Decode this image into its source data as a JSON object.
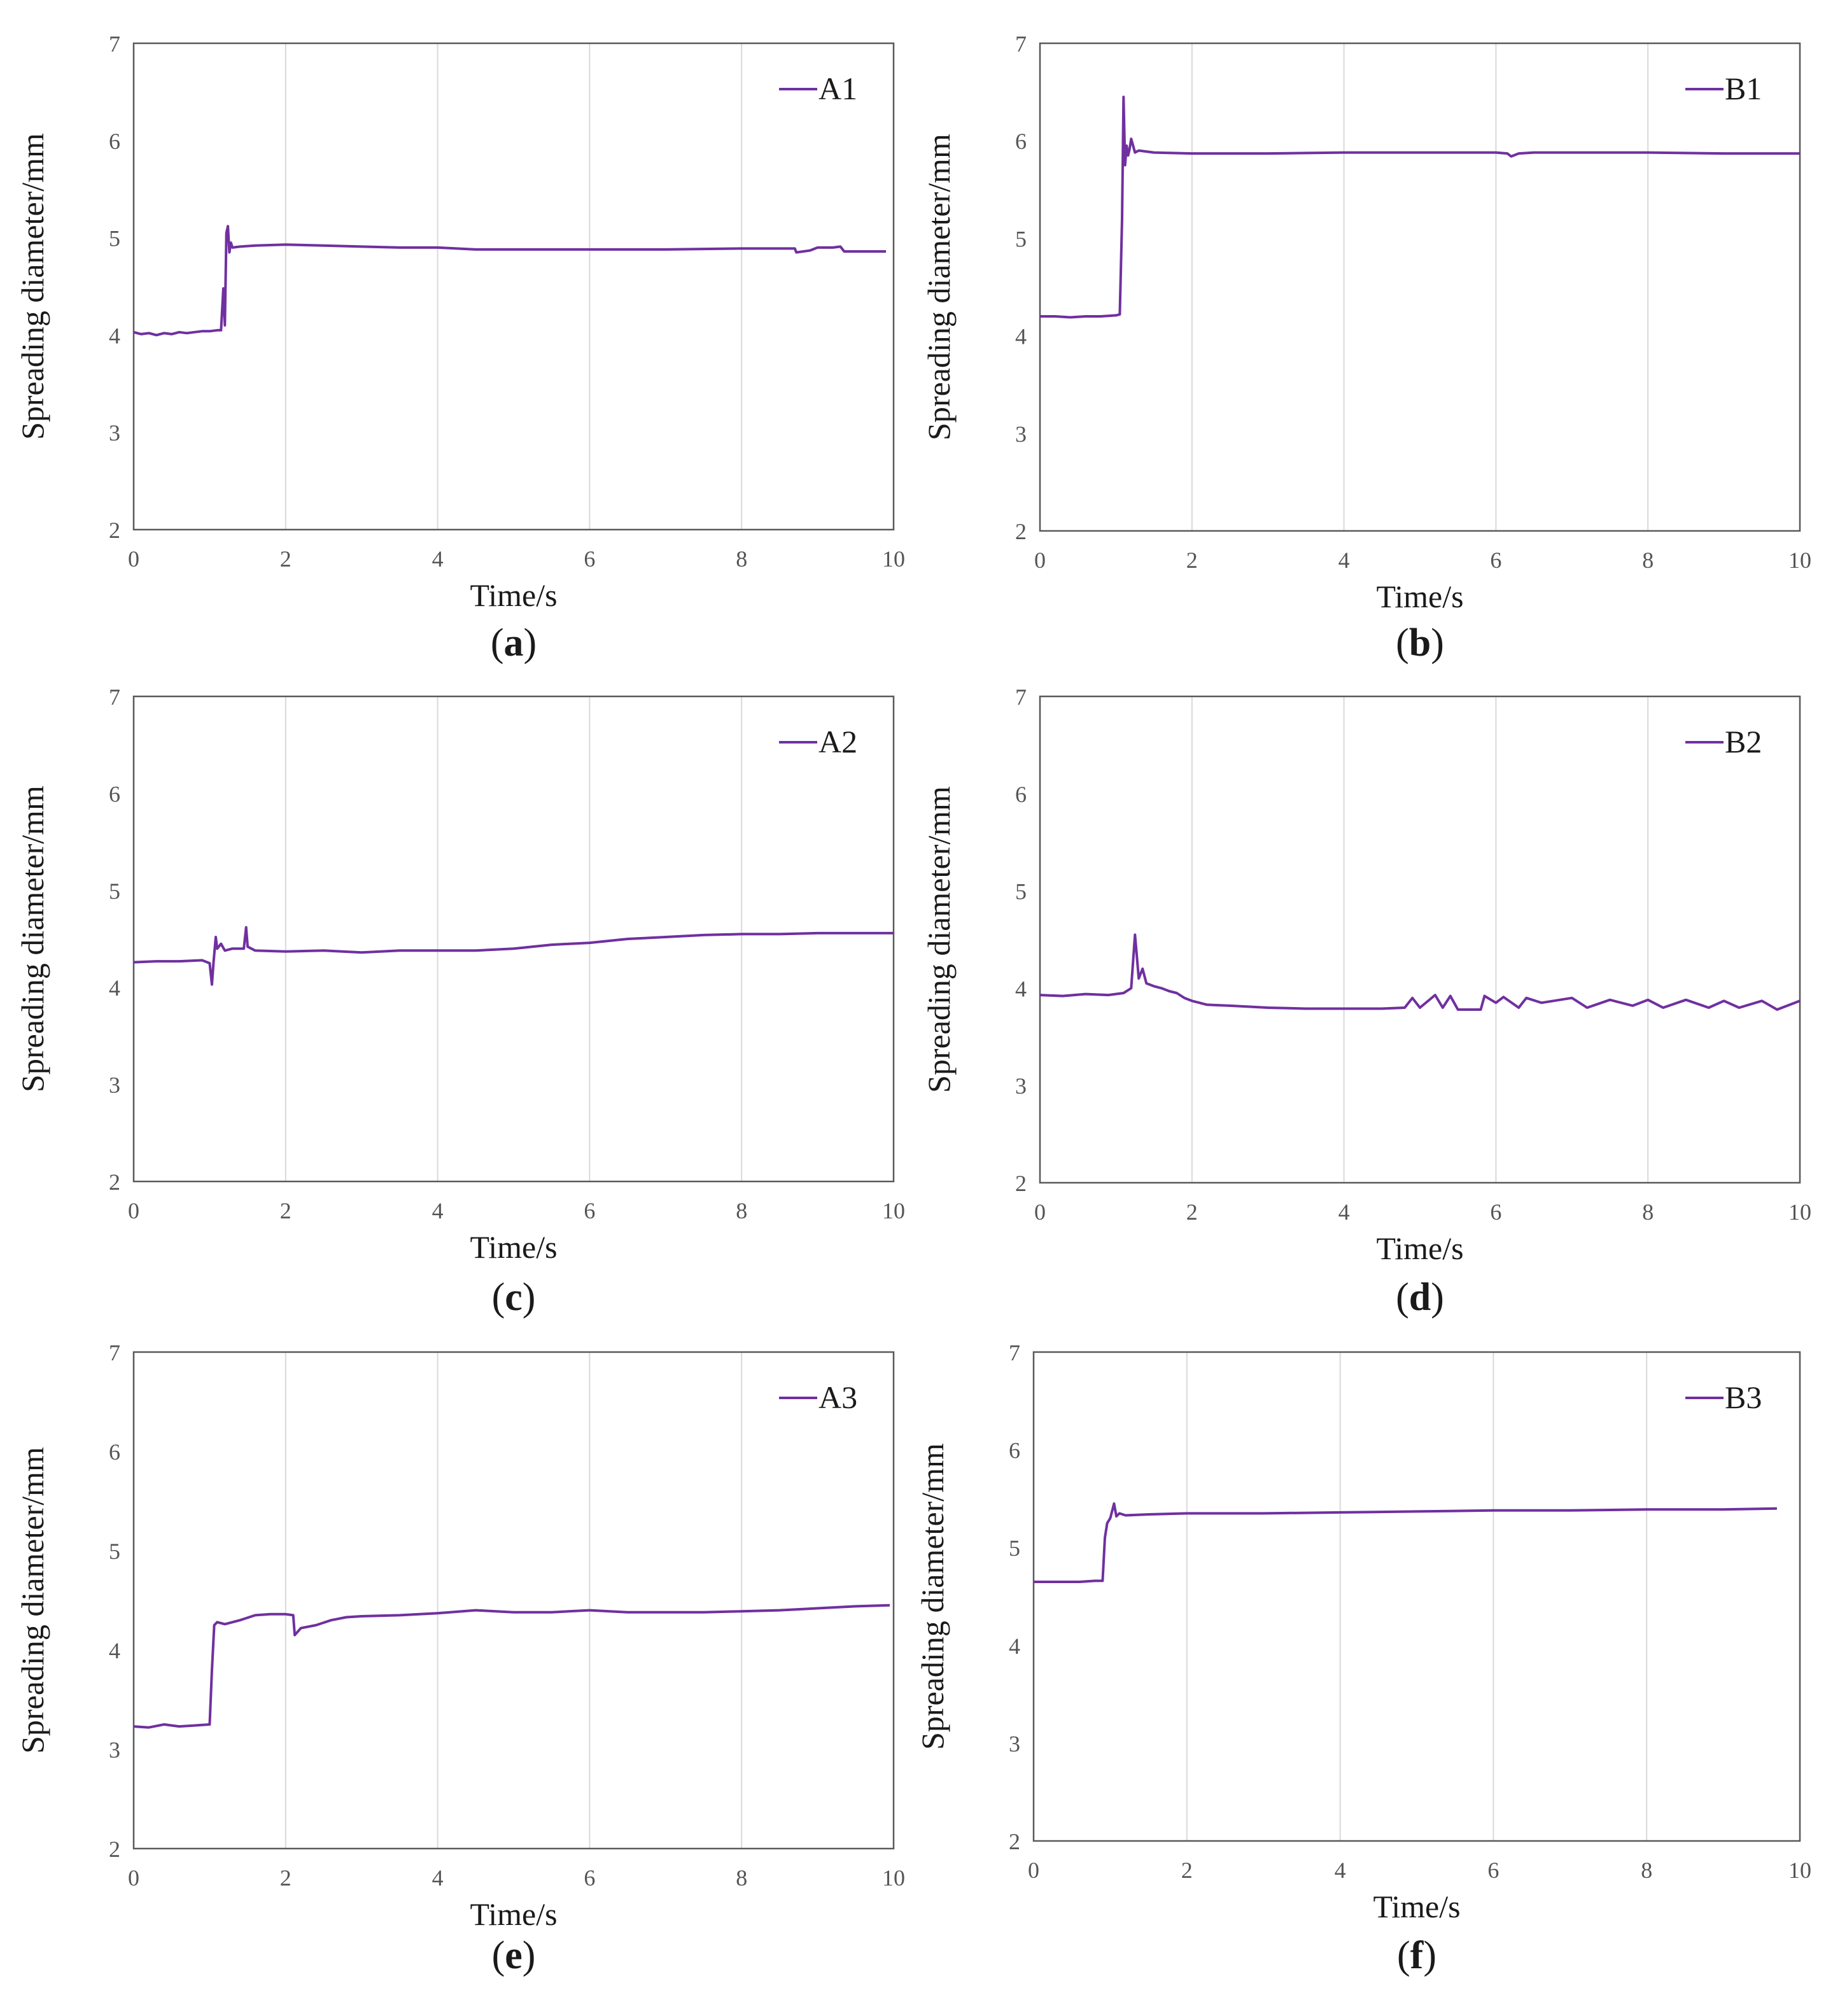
{
  "figure": {
    "line_color": "#7030A0",
    "grid_color": "#d9d9d9",
    "axis_color": "#595959"
  },
  "chart_data": [
    {
      "type": "line",
      "id": "a",
      "caption": "a",
      "legend_position": "top-right",
      "xlabel": "Time/s",
      "ylabel": "Spreading diameter/mm",
      "xlim": [
        0,
        10
      ],
      "ylim": [
        2,
        7
      ],
      "xticks": [
        "0",
        "2",
        "4",
        "6",
        "8",
        "10"
      ],
      "yticks": [
        "2",
        "3",
        "4",
        "5",
        "6",
        "7"
      ],
      "series": [
        {
          "name": "A1",
          "x": [
            0,
            0.1,
            0.2,
            0.3,
            0.4,
            0.5,
            0.6,
            0.7,
            0.8,
            0.9,
            1.0,
            1.1,
            1.15,
            1.18,
            1.2,
            1.22,
            1.24,
            1.26,
            1.28,
            1.3,
            1.4,
            1.6,
            2.0,
            2.5,
            3.0,
            3.5,
            4.0,
            4.5,
            5.0,
            6.0,
            7.0,
            8.0,
            8.5,
            8.7,
            8.72,
            8.9,
            9.0,
            9.2,
            9.3,
            9.35,
            9.5,
            9.9
          ],
          "y": [
            4.03,
            4.01,
            4.02,
            4.0,
            4.02,
            4.01,
            4.03,
            4.02,
            4.03,
            4.04,
            4.04,
            4.05,
            4.05,
            4.48,
            4.1,
            5.05,
            5.12,
            4.85,
            4.95,
            4.9,
            4.91,
            4.92,
            4.93,
            4.92,
            4.91,
            4.9,
            4.9,
            4.88,
            4.88,
            4.88,
            4.88,
            4.89,
            4.89,
            4.89,
            4.85,
            4.87,
            4.9,
            4.9,
            4.91,
            4.86,
            4.86,
            4.86
          ]
        }
      ]
    },
    {
      "type": "line",
      "id": "b",
      "caption": "b",
      "legend_position": "top-right",
      "xlabel": "Time/s",
      "ylabel": "Spreading diameter/mm",
      "xlim": [
        0,
        10
      ],
      "ylim": [
        2,
        7
      ],
      "xticks": [
        "0",
        "2",
        "4",
        "6",
        "8",
        "10"
      ],
      "yticks": [
        "2",
        "3",
        "4",
        "5",
        "6",
        "7"
      ],
      "series": [
        {
          "name": "B1",
          "x": [
            0,
            0.2,
            0.4,
            0.6,
            0.8,
            1.0,
            1.05,
            1.08,
            1.1,
            1.12,
            1.14,
            1.16,
            1.18,
            1.2,
            1.25,
            1.3,
            1.5,
            2.0,
            3.0,
            4.0,
            5.0,
            6.0,
            6.15,
            6.2,
            6.3,
            6.5,
            7.0,
            8.0,
            9.0,
            10.0
          ],
          "y": [
            4.2,
            4.2,
            4.19,
            4.2,
            4.2,
            4.21,
            4.22,
            5.2,
            6.45,
            5.75,
            5.95,
            5.85,
            5.92,
            6.02,
            5.88,
            5.9,
            5.88,
            5.87,
            5.87,
            5.88,
            5.88,
            5.88,
            5.87,
            5.84,
            5.87,
            5.88,
            5.88,
            5.88,
            5.87,
            5.87
          ]
        }
      ]
    },
    {
      "type": "line",
      "id": "c",
      "caption": "c",
      "legend_position": "top-right",
      "xlabel": "Time/s",
      "ylabel": "Spreading diameter/mm",
      "xlim": [
        0,
        10
      ],
      "ylim": [
        2,
        7
      ],
      "xticks": [
        "0",
        "2",
        "4",
        "6",
        "8",
        "10"
      ],
      "yticks": [
        "2",
        "3",
        "4",
        "5",
        "6",
        "7"
      ],
      "series": [
        {
          "name": "A2",
          "x": [
            0,
            0.3,
            0.6,
            0.9,
            1.0,
            1.03,
            1.05,
            1.08,
            1.1,
            1.15,
            1.2,
            1.3,
            1.45,
            1.48,
            1.5,
            1.6,
            2.0,
            2.5,
            3.0,
            3.5,
            4.0,
            4.5,
            5.0,
            5.5,
            6.0,
            6.5,
            7.0,
            7.5,
            8.0,
            8.5,
            9.0,
            9.5,
            10.0
          ],
          "y": [
            4.26,
            4.27,
            4.27,
            4.28,
            4.25,
            4.03,
            4.25,
            4.52,
            4.4,
            4.45,
            4.38,
            4.4,
            4.4,
            4.62,
            4.42,
            4.38,
            4.37,
            4.38,
            4.36,
            4.38,
            4.38,
            4.38,
            4.4,
            4.44,
            4.46,
            4.5,
            4.52,
            4.54,
            4.55,
            4.55,
            4.56,
            4.56,
            4.56
          ]
        }
      ]
    },
    {
      "type": "line",
      "id": "d",
      "caption": "d",
      "legend_position": "top-right",
      "xlabel": "Time/s",
      "ylabel": "Spreading diameter/mm",
      "xlim": [
        0,
        10
      ],
      "ylim": [
        2,
        7
      ],
      "xticks": [
        "0",
        "2",
        "4",
        "6",
        "8",
        "10"
      ],
      "yticks": [
        "2",
        "3",
        "4",
        "5",
        "6",
        "7"
      ],
      "series": [
        {
          "name": "B2",
          "x": [
            0,
            0.3,
            0.6,
            0.9,
            1.1,
            1.2,
            1.25,
            1.3,
            1.35,
            1.4,
            1.5,
            1.6,
            1.7,
            1.8,
            1.9,
            2.0,
            2.2,
            2.5,
            3.0,
            3.5,
            4.0,
            4.5,
            4.8,
            4.9,
            5.0,
            5.2,
            5.3,
            5.4,
            5.5,
            5.8,
            5.85,
            6.0,
            6.1,
            6.3,
            6.4,
            6.6,
            7.0,
            7.2,
            7.5,
            7.8,
            8.0,
            8.2,
            8.5,
            8.8,
            9.0,
            9.2,
            9.5,
            9.7,
            10.0
          ],
          "y": [
            3.93,
            3.92,
            3.94,
            3.93,
            3.95,
            4.0,
            4.55,
            4.1,
            4.2,
            4.05,
            4.02,
            4.0,
            3.97,
            3.95,
            3.9,
            3.87,
            3.83,
            3.82,
            3.8,
            3.79,
            3.79,
            3.79,
            3.8,
            3.9,
            3.8,
            3.93,
            3.8,
            3.92,
            3.78,
            3.78,
            3.92,
            3.85,
            3.91,
            3.8,
            3.9,
            3.85,
            3.9,
            3.8,
            3.88,
            3.82,
            3.88,
            3.8,
            3.88,
            3.8,
            3.87,
            3.8,
            3.87,
            3.78,
            3.87
          ]
        }
      ]
    },
    {
      "type": "line",
      "id": "e",
      "caption": "e",
      "legend_position": "top-right",
      "xlabel": "Time/s",
      "ylabel": "Spreading diameter/mm",
      "xlim": [
        0,
        10
      ],
      "ylim": [
        2,
        7
      ],
      "xticks": [
        "0",
        "2",
        "4",
        "6",
        "8",
        "10"
      ],
      "yticks": [
        "2",
        "3",
        "4",
        "5",
        "6",
        "7"
      ],
      "series": [
        {
          "name": "A3",
          "x": [
            0,
            0.2,
            0.4,
            0.6,
            0.8,
            1.0,
            1.03,
            1.06,
            1.1,
            1.2,
            1.4,
            1.6,
            1.8,
            2.0,
            2.1,
            2.12,
            2.2,
            2.4,
            2.6,
            2.8,
            3.0,
            3.5,
            4.0,
            4.5,
            5.0,
            5.5,
            6.0,
            6.5,
            7.0,
            7.5,
            8.0,
            8.5,
            9.0,
            9.5,
            9.95
          ],
          "y": [
            3.23,
            3.22,
            3.25,
            3.23,
            3.24,
            3.25,
            3.8,
            4.25,
            4.28,
            4.26,
            4.3,
            4.35,
            4.36,
            4.36,
            4.35,
            4.15,
            4.22,
            4.25,
            4.3,
            4.33,
            4.34,
            4.35,
            4.37,
            4.4,
            4.38,
            4.38,
            4.4,
            4.38,
            4.38,
            4.38,
            4.39,
            4.4,
            4.42,
            4.44,
            4.45
          ]
        }
      ]
    },
    {
      "type": "line",
      "id": "f",
      "caption": "f",
      "legend_position": "top-right",
      "xlabel": "Time/s",
      "ylabel": "Spreading diameter/mm",
      "xlim": [
        0,
        10
      ],
      "ylim": [
        2,
        7
      ],
      "xticks": [
        "0",
        "2",
        "4",
        "6",
        "8",
        "10"
      ],
      "yticks": [
        "2",
        "3",
        "4",
        "5",
        "6",
        "7"
      ],
      "series": [
        {
          "name": "B3",
          "x": [
            0,
            0.3,
            0.6,
            0.8,
            0.9,
            0.93,
            0.96,
            1.0,
            1.05,
            1.08,
            1.12,
            1.2,
            1.5,
            2.0,
            3.0,
            4.0,
            5.0,
            6.0,
            7.0,
            8.0,
            9.0,
            9.7
          ],
          "y": [
            4.65,
            4.65,
            4.65,
            4.66,
            4.66,
            5.1,
            5.25,
            5.3,
            5.45,
            5.32,
            5.35,
            5.33,
            5.34,
            5.35,
            5.35,
            5.36,
            5.37,
            5.38,
            5.38,
            5.39,
            5.39,
            5.4
          ]
        }
      ]
    }
  ]
}
